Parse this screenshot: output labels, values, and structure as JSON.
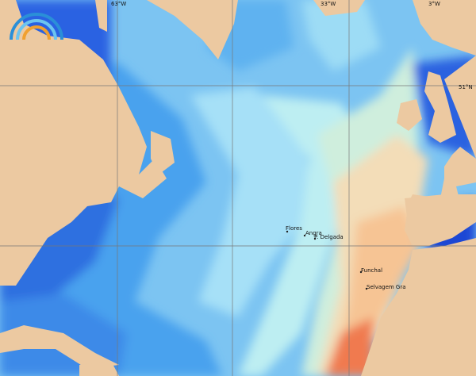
{
  "map": {
    "grid_labels": {
      "longitude": [
        "63°W",
        "33°W",
        "3°W"
      ],
      "latitude": [
        "51°N"
      ]
    },
    "places": [
      "Flores",
      "Angra",
      "P. Delgada",
      "Funchal",
      "Selvagem Gra"
    ]
  }
}
